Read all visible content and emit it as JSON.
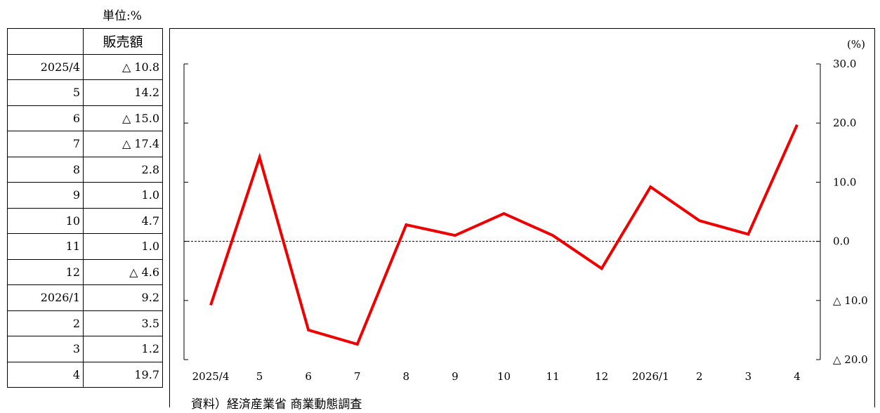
{
  "unit_label": "単位:%",
  "table": {
    "header": [
      "",
      "販売額"
    ],
    "rows": [
      {
        "month": "2025/4",
        "value": "△ 10.8"
      },
      {
        "month": "5",
        "value": "14.2"
      },
      {
        "month": "6",
        "value": "△ 15.0"
      },
      {
        "month": "7",
        "value": "△ 17.4"
      },
      {
        "month": "8",
        "value": "2.8"
      },
      {
        "month": "9",
        "value": "1.0"
      },
      {
        "month": "10",
        "value": "4.7"
      },
      {
        "month": "11",
        "value": "1.0"
      },
      {
        "month": "12",
        "value": "△ 4.6"
      },
      {
        "month": "2026/1",
        "value": "9.2"
      },
      {
        "month": "2",
        "value": "3.5"
      },
      {
        "month": "3",
        "value": "1.2"
      },
      {
        "month": "4",
        "value": "19.7"
      }
    ]
  },
  "source": "資料）経済産業省 商業動態調査",
  "chart_data": {
    "type": "line",
    "categories": [
      "2025/4",
      "5",
      "6",
      "7",
      "8",
      "9",
      "10",
      "11",
      "12",
      "2026/1",
      "2",
      "3",
      "4"
    ],
    "series": [
      {
        "values": [
          -10.8,
          14.2,
          -15.0,
          -17.4,
          2.8,
          1.0,
          4.7,
          1.0,
          -4.6,
          9.2,
          3.5,
          1.2,
          19.7
        ],
        "color": "#ee0000"
      }
    ],
    "ylabel": "(%)",
    "ylim": [
      -20,
      30
    ],
    "yticks": [
      30,
      20,
      10,
      0,
      -10,
      -20
    ],
    "ytick_labels": [
      "30.0",
      "20.0",
      "10.0",
      "0.0",
      "△ 10.0",
      "△ 20.0"
    ],
    "zero_line": "dashed",
    "grid": false
  }
}
